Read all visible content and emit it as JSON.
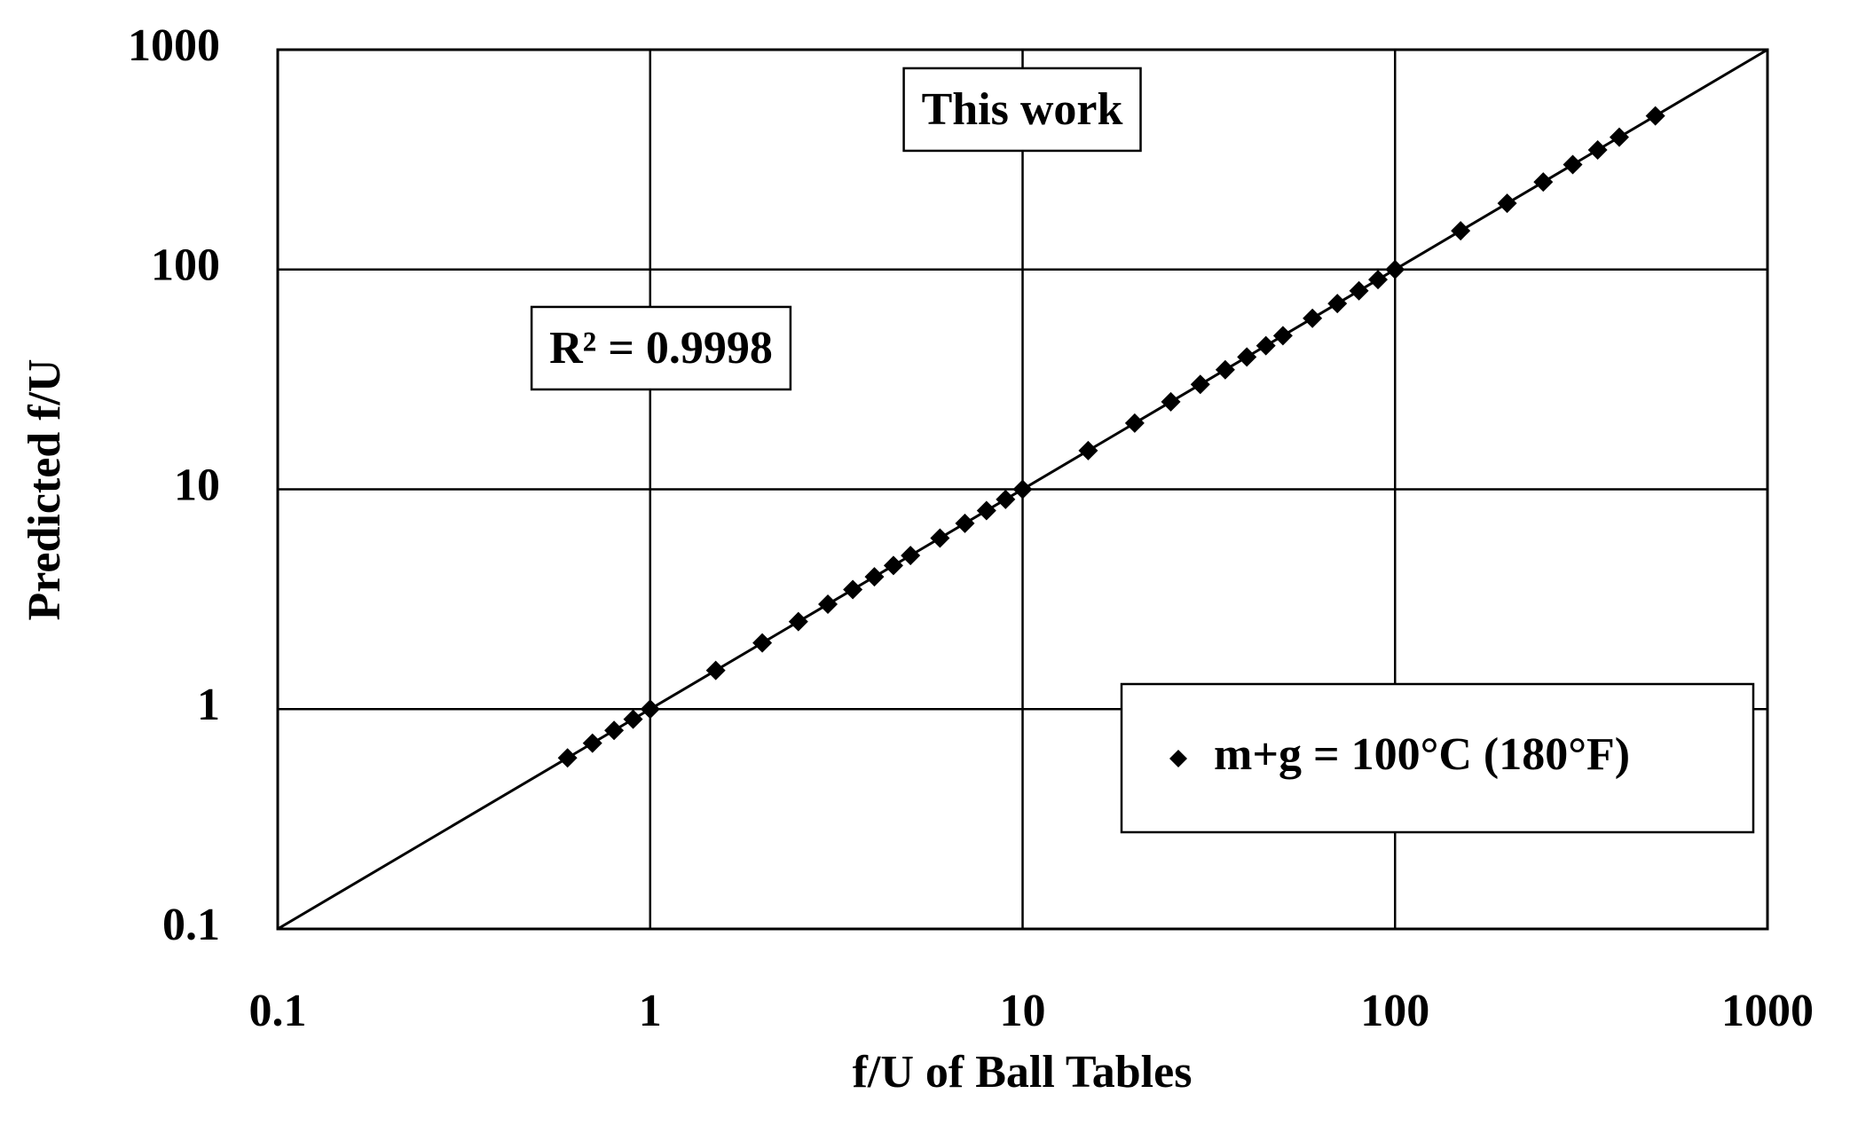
{
  "chart_data": {
    "type": "scatter",
    "annotations": [
      "This work",
      "R² = 0.9998"
    ],
    "xlabel": "f/U of Ball Tables",
    "ylabel": "Predicted f/U",
    "log_x": true,
    "log_y": true,
    "grid": true,
    "legend": "lower right",
    "xlim": [
      0.1,
      1000
    ],
    "ylim": [
      0.1,
      1000
    ],
    "xticks": [
      0.1,
      1,
      10,
      100,
      1000
    ],
    "yticks": [
      0.1,
      1,
      10,
      100,
      1000
    ],
    "series": [
      {
        "name": "m+g = 100°C (180°F)",
        "color": "#000000",
        "x": [
          0.6,
          0.7,
          0.8,
          0.9,
          1,
          1.5,
          2,
          2.5,
          3,
          3.5,
          4,
          4.5,
          5,
          6,
          7,
          8,
          9,
          10,
          15,
          20,
          25,
          30,
          35,
          40,
          45,
          50,
          60,
          70,
          80,
          90,
          100,
          150,
          200,
          250,
          300,
          350,
          400,
          500
        ],
        "values": [
          0.6,
          0.7,
          0.8,
          0.9,
          1,
          1.5,
          2,
          2.5,
          3,
          3.5,
          4,
          4.5,
          5,
          6,
          7,
          8,
          9,
          10,
          15,
          20,
          25,
          30,
          35,
          40,
          45,
          50,
          60,
          70,
          80,
          90,
          100,
          150,
          200,
          250,
          300,
          350,
          400,
          500
        ]
      }
    ],
    "trendline": {
      "x": [
        0.1,
        1000
      ],
      "values": [
        0.1,
        1000
      ]
    }
  }
}
